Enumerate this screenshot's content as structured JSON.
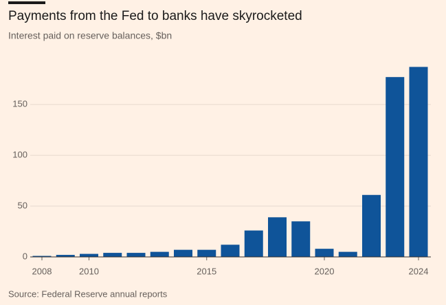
{
  "chart_data": {
    "type": "bar",
    "title": "Payments from the Fed to banks have skyrocketed",
    "subtitle": "Interest paid on reserve balances, $bn",
    "source": "Source: Federal Reserve annual reports",
    "categories": [
      "2008",
      null,
      "2010",
      null,
      null,
      null,
      null,
      "2015",
      null,
      null,
      null,
      null,
      "2020",
      null,
      null,
      null,
      "2024"
    ],
    "values": [
      1,
      2,
      3,
      4,
      4,
      5,
      7,
      7,
      12,
      26,
      39,
      35,
      8,
      5,
      61,
      177,
      187
    ],
    "color": "#0f5499",
    "ylim": [
      0,
      192
    ],
    "yticks": [
      0,
      50,
      100,
      150
    ],
    "grid": true
  }
}
